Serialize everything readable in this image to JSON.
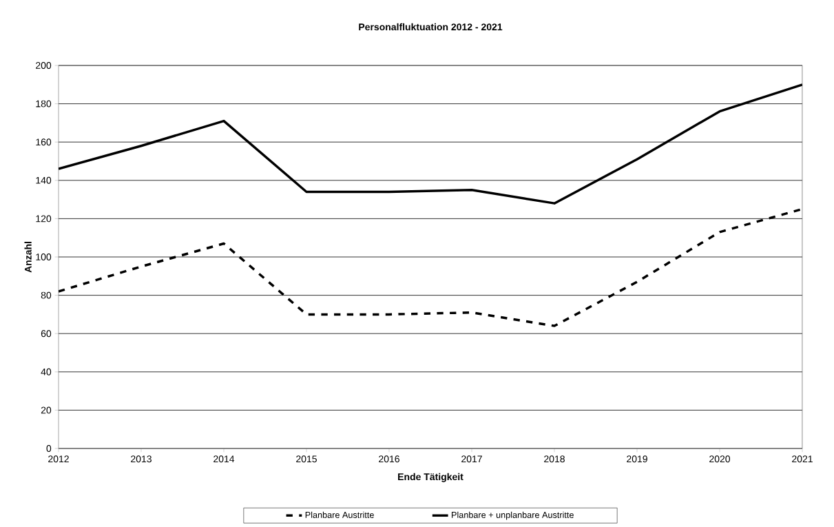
{
  "chart_data": {
    "type": "line",
    "title": "Personalfluktuation 2012 - 2021",
    "xlabel": "Ende Tätigkeit",
    "ylabel": "Anzahl",
    "x": [
      2012,
      2013,
      2014,
      2015,
      2016,
      2017,
      2018,
      2019,
      2020,
      2021
    ],
    "series": [
      {
        "name": "Planbare Austritte",
        "color": "#000000",
        "line_style": "dashed",
        "values": [
          82,
          95,
          107,
          70,
          70,
          71,
          64,
          87,
          113,
          125
        ]
      },
      {
        "name": "Planbare + unplanbare Austritte",
        "color": "#000000",
        "line_style": "solid",
        "values": [
          146,
          158,
          171,
          134,
          134,
          135,
          128,
          151,
          176,
          190
        ]
      }
    ],
    "xlim": [
      2012,
      2021
    ],
    "xticks": [
      2012,
      2013,
      2014,
      2015,
      2016,
      2017,
      2018,
      2019,
      2020,
      2021
    ],
    "ylim": [
      0,
      200
    ],
    "yticks": [
      0,
      20,
      40,
      60,
      80,
      100,
      120,
      140,
      160,
      180,
      200
    ],
    "grid": "y",
    "legend": "bottom",
    "marker": "none"
  }
}
